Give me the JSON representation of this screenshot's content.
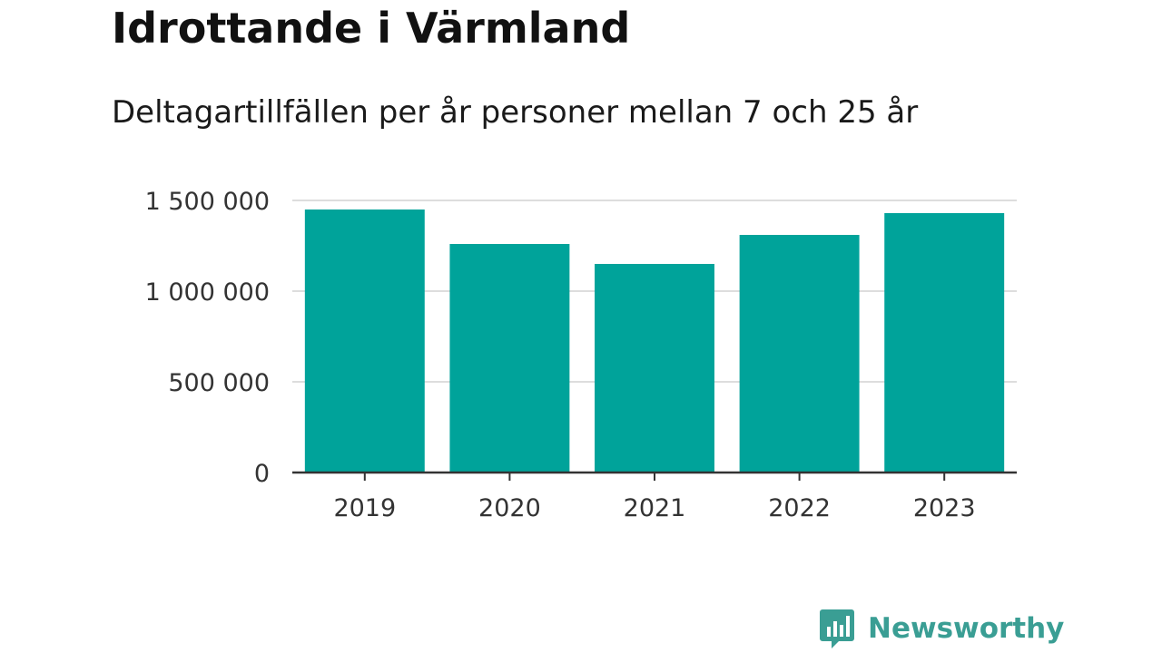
{
  "header": {
    "title": "Idrottande i Värmland",
    "subtitle": "Deltagartillfällen per år personer mellan 7 och 25 år"
  },
  "brand": {
    "name": "Newsworthy",
    "icon": "bar-chart-speech-bubble-icon",
    "color": "#3a9e94"
  },
  "colors": {
    "bar": "#00a39a",
    "grid": "#dddddd",
    "axis": "#333333",
    "tick_text": "#333333"
  },
  "chart_data": {
    "type": "bar",
    "title": "Idrottande i Värmland",
    "subtitle": "Deltagartillfällen per år personer mellan 7 och 25 år",
    "categories": [
      "2019",
      "2020",
      "2021",
      "2022",
      "2023"
    ],
    "values": [
      1450000,
      1260000,
      1150000,
      1310000,
      1430000
    ],
    "xlabel": "",
    "ylabel": "",
    "ylim": [
      0,
      1500000
    ],
    "yticks": [
      0,
      500000,
      1000000,
      1500000
    ],
    "ytick_labels": [
      "0",
      "500 000",
      "1 000 000",
      "1 500 000"
    ],
    "grid": true,
    "legend": "none"
  }
}
